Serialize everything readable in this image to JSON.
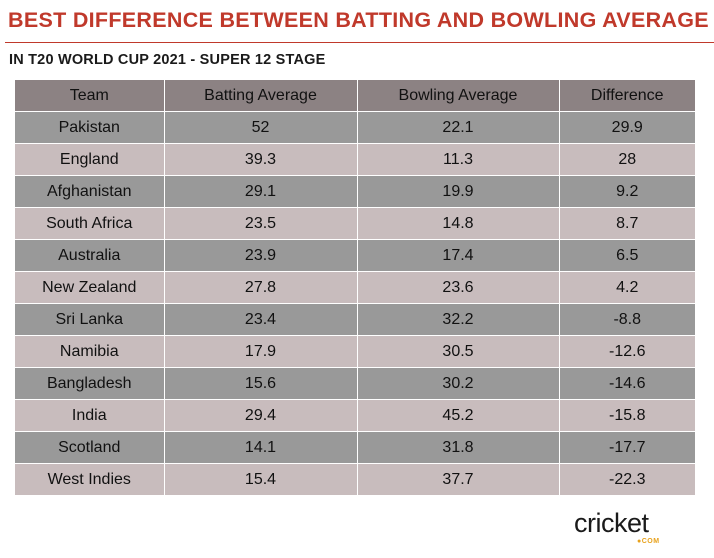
{
  "header": {
    "title": "BEST DIFFERENCE BETWEEN BATTING AND BOWLING AVERAGE",
    "subtitle": "IN T20 WORLD CUP 2021 - SUPER 12 STAGE"
  },
  "colors": {
    "title_red": "#c0392b",
    "header_row": "#8c8283",
    "row_dark": "#999999",
    "row_light": "#c8bcbd",
    "logo_accent": "#e8a21c"
  },
  "logo": {
    "word": "cricket",
    "sub": "●COM"
  },
  "chart_data": {
    "type": "table",
    "columns": [
      "Team",
      "Batting Average",
      "Bowling Average",
      "Difference"
    ],
    "rows": [
      [
        "Pakistan",
        "52",
        "22.1",
        "29.9"
      ],
      [
        "England",
        "39.3",
        "11.3",
        "28"
      ],
      [
        "Afghanistan",
        "29.1",
        "19.9",
        "9.2"
      ],
      [
        "South Africa",
        "23.5",
        "14.8",
        "8.7"
      ],
      [
        "Australia",
        "23.9",
        "17.4",
        "6.5"
      ],
      [
        "New Zealand",
        "27.8",
        "23.6",
        "4.2"
      ],
      [
        "Sri Lanka",
        "23.4",
        "32.2",
        "-8.8"
      ],
      [
        "Namibia",
        "17.9",
        "30.5",
        "-12.6"
      ],
      [
        "Bangladesh",
        "15.6",
        "30.2",
        "-14.6"
      ],
      [
        "India",
        "29.4",
        "45.2",
        "-15.8"
      ],
      [
        "Scotland",
        "14.1",
        "31.8",
        "-17.7"
      ],
      [
        "West Indies",
        "15.4",
        "37.7",
        "-22.3"
      ]
    ]
  }
}
